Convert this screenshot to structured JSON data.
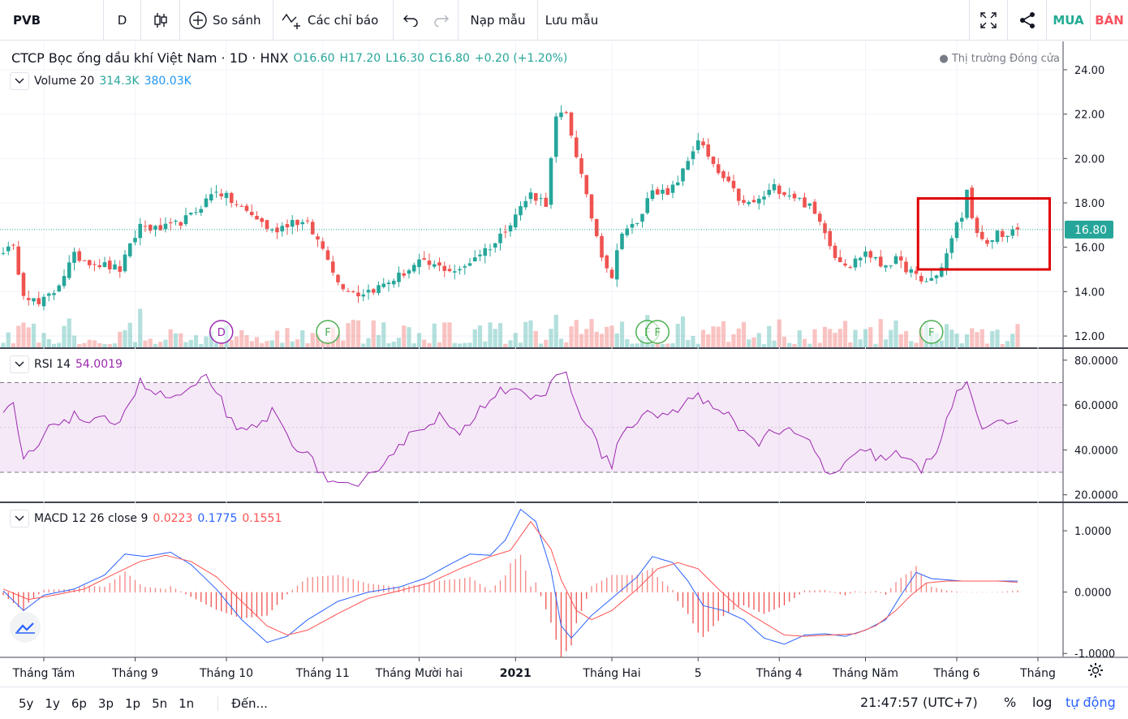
{
  "toolbar": {
    "symbol": "PVB",
    "interval": "D",
    "compare": "So sánh",
    "indicators": "Các chỉ báo",
    "load_template": "Nạp mẫu",
    "save_template": "Lưu mẫu",
    "buy": "MUA",
    "sell": "BÁN",
    "buy_color": "#22ab94",
    "sell_color": "#f7525f"
  },
  "main_legend": {
    "title": "CTCP Bọc ống dầu khí Việt Nam · 1D · HNX",
    "open": "O16.60",
    "high": "H17.20",
    "low": "L16.30",
    "close": "C16.80",
    "change": "+0.20 (+1.20%)",
    "status": "Thị trường Đóng cửa"
  },
  "volume_legend": {
    "name": "Volume 20",
    "v1": "314.3K",
    "v2": "380.03K"
  },
  "rsi_legend": {
    "name": "RSI 14",
    "value": "54.0019"
  },
  "macd_legend": {
    "name": "MACD 12 26 close 9",
    "hist": "0.0223",
    "macd": "0.1775",
    "signal": "0.1551"
  },
  "colors": {
    "up": "#26a69a",
    "down": "#ef5350",
    "rsi": "#9c27b0",
    "macd": "#2962ff",
    "signal": "#ff5252",
    "highlight": "#e00000"
  },
  "chart_data": {
    "type": "candlestick",
    "symbol": "PVB",
    "exchange": "HNX",
    "last_price": 16.8,
    "last_price_label": "16.80",
    "price_axis": {
      "ylim": [
        11.6,
        24.4
      ],
      "ticks": [
        "24.00",
        "22.00",
        "20.00",
        "18.00",
        "16.00",
        "14.00",
        "12.00"
      ]
    },
    "rsi_axis": {
      "ylim": [
        17,
        85
      ],
      "ticks": [
        "80.0000",
        "60.0000",
        "40.0000",
        "20.0000"
      ],
      "band": [
        30,
        70
      ]
    },
    "macd_axis": {
      "ylim": [
        -1.05,
        1.45
      ],
      "ticks": [
        "1.0000",
        "0.0000",
        "-1.0000"
      ]
    },
    "x_labels": [
      "Tháng Tám",
      "Tháng 9",
      "Tháng 10",
      "Tháng 11",
      "Tháng Mười hai",
      "2021",
      "Tháng Hai",
      "5",
      "Tháng 4",
      "Tháng Năm",
      "Tháng 6",
      "Tháng"
    ],
    "price_anchors": [
      [
        0,
        15.9
      ],
      [
        2,
        15.9
      ],
      [
        4,
        14.0
      ],
      [
        7,
        13.4
      ],
      [
        10,
        14.0
      ],
      [
        14,
        15.6
      ],
      [
        18,
        15.3
      ],
      [
        23,
        15.0
      ],
      [
        27,
        17.0
      ],
      [
        30,
        16.8
      ],
      [
        33,
        16.9
      ],
      [
        37,
        17.4
      ],
      [
        42,
        18.6
      ],
      [
        46,
        17.9
      ],
      [
        50,
        17.3
      ],
      [
        53,
        16.7
      ],
      [
        57,
        17.2
      ],
      [
        60,
        17.0
      ],
      [
        64,
        15.6
      ],
      [
        66,
        14.4
      ],
      [
        70,
        13.9
      ],
      [
        74,
        14.2
      ],
      [
        78,
        14.7
      ],
      [
        82,
        15.3
      ],
      [
        86,
        15.1
      ],
      [
        90,
        14.9
      ],
      [
        93,
        15.6
      ],
      [
        97,
        16.2
      ],
      [
        101,
        17.5
      ],
      [
        104,
        18.4
      ],
      [
        107,
        18.0
      ],
      [
        109,
        21.8
      ],
      [
        111,
        22.0
      ],
      [
        113,
        20.2
      ],
      [
        115,
        18.2
      ],
      [
        118,
        15.7
      ],
      [
        120,
        14.7
      ],
      [
        122,
        16.8
      ],
      [
        125,
        17.0
      ],
      [
        128,
        18.7
      ],
      [
        131,
        18.3
      ],
      [
        134,
        19.4
      ],
      [
        137,
        20.9
      ],
      [
        140,
        19.6
      ],
      [
        143,
        18.8
      ],
      [
        146,
        17.9
      ],
      [
        149,
        18.1
      ],
      [
        152,
        18.7
      ],
      [
        156,
        18.3
      ],
      [
        159,
        17.8
      ],
      [
        162,
        16.8
      ],
      [
        164,
        15.6
      ],
      [
        167,
        15.2
      ],
      [
        170,
        15.8
      ],
      [
        173,
        15.2
      ],
      [
        176,
        15.4
      ],
      [
        179,
        14.9
      ],
      [
        181,
        14.4
      ],
      [
        184,
        14.7
      ],
      [
        186,
        15.7
      ],
      [
        188,
        17.0
      ],
      [
        189,
        17.4
      ],
      [
        190,
        18.5
      ],
      [
        192,
        16.5
      ],
      [
        194,
        16.0
      ],
      [
        196,
        16.7
      ],
      [
        198,
        16.5
      ],
      [
        200,
        16.8
      ]
    ],
    "rsi_anchors": [
      [
        0,
        56
      ],
      [
        2,
        60
      ],
      [
        4,
        35
      ],
      [
        7,
        42
      ],
      [
        10,
        52
      ],
      [
        14,
        55
      ],
      [
        18,
        52
      ],
      [
        23,
        54
      ],
      [
        27,
        70
      ],
      [
        30,
        65
      ],
      [
        33,
        63
      ],
      [
        37,
        66
      ],
      [
        40,
        72
      ],
      [
        42,
        67
      ],
      [
        46,
        47
      ],
      [
        50,
        50
      ],
      [
        53,
        57
      ],
      [
        57,
        44
      ],
      [
        60,
        37
      ],
      [
        64,
        27
      ],
      [
        66,
        24
      ],
      [
        70,
        22
      ],
      [
        74,
        33
      ],
      [
        78,
        42
      ],
      [
        82,
        50
      ],
      [
        86,
        55
      ],
      [
        90,
        45
      ],
      [
        93,
        56
      ],
      [
        97,
        66
      ],
      [
        101,
        69
      ],
      [
        104,
        63
      ],
      [
        107,
        62
      ],
      [
        109,
        75
      ],
      [
        111,
        73
      ],
      [
        113,
        60
      ],
      [
        115,
        52
      ],
      [
        118,
        38
      ],
      [
        120,
        34
      ],
      [
        122,
        48
      ],
      [
        125,
        52
      ],
      [
        128,
        57
      ],
      [
        131,
        55
      ],
      [
        134,
        59
      ],
      [
        137,
        66
      ],
      [
        140,
        57
      ],
      [
        143,
        55
      ],
      [
        146,
        48
      ],
      [
        149,
        44
      ],
      [
        152,
        49
      ],
      [
        156,
        47
      ],
      [
        159,
        43
      ],
      [
        162,
        31
      ],
      [
        164,
        29
      ],
      [
        167,
        35
      ],
      [
        170,
        40
      ],
      [
        173,
        36
      ],
      [
        176,
        38
      ],
      [
        179,
        34
      ],
      [
        181,
        31
      ],
      [
        184,
        40
      ],
      [
        186,
        55
      ],
      [
        188,
        64
      ],
      [
        189,
        67
      ],
      [
        190,
        71
      ],
      [
        192,
        55
      ],
      [
        194,
        48
      ],
      [
        196,
        51
      ],
      [
        198,
        52
      ],
      [
        200,
        54
      ]
    ],
    "macd_anchors": [
      [
        0,
        0.02
      ],
      [
        4,
        -0.3
      ],
      [
        8,
        -0.05
      ],
      [
        14,
        0.05
      ],
      [
        20,
        0.28
      ],
      [
        24,
        0.62
      ],
      [
        28,
        0.58
      ],
      [
        33,
        0.65
      ],
      [
        37,
        0.45
      ],
      [
        42,
        0.05
      ],
      [
        47,
        -0.45
      ],
      [
        52,
        -0.82
      ],
      [
        56,
        -0.72
      ],
      [
        60,
        -0.45
      ],
      [
        66,
        -0.15
      ],
      [
        72,
        0.0
      ],
      [
        78,
        0.08
      ],
      [
        83,
        0.22
      ],
      [
        88,
        0.45
      ],
      [
        92,
        0.62
      ],
      [
        96,
        0.6
      ],
      [
        99,
        0.85
      ],
      [
        102,
        1.35
      ],
      [
        105,
        1.15
      ],
      [
        108,
        0.35
      ],
      [
        110,
        -0.55
      ],
      [
        112,
        -0.75
      ],
      [
        116,
        -0.38
      ],
      [
        120,
        -0.1
      ],
      [
        125,
        0.25
      ],
      [
        128,
        0.58
      ],
      [
        132,
        0.48
      ],
      [
        135,
        0.18
      ],
      [
        138,
        -0.22
      ],
      [
        142,
        -0.3
      ],
      [
        146,
        -0.45
      ],
      [
        150,
        -0.75
      ],
      [
        154,
        -0.85
      ],
      [
        158,
        -0.7
      ],
      [
        162,
        -0.68
      ],
      [
        166,
        -0.72
      ],
      [
        170,
        -0.62
      ],
      [
        174,
        -0.45
      ],
      [
        177,
        -0.05
      ],
      [
        180,
        0.32
      ],
      [
        183,
        0.22
      ],
      [
        186,
        0.2
      ],
      [
        189,
        0.18
      ],
      [
        192,
        0.18
      ],
      [
        196,
        0.18
      ],
      [
        200,
        0.18
      ]
    ],
    "signal_anchors": [
      [
        0,
        0.05
      ],
      [
        5,
        -0.12
      ],
      [
        10,
        -0.05
      ],
      [
        16,
        0.05
      ],
      [
        22,
        0.3
      ],
      [
        27,
        0.5
      ],
      [
        32,
        0.6
      ],
      [
        37,
        0.5
      ],
      [
        42,
        0.25
      ],
      [
        47,
        -0.15
      ],
      [
        52,
        -0.55
      ],
      [
        56,
        -0.7
      ],
      [
        60,
        -0.62
      ],
      [
        66,
        -0.35
      ],
      [
        72,
        -0.1
      ],
      [
        78,
        0.02
      ],
      [
        84,
        0.15
      ],
      [
        90,
        0.38
      ],
      [
        96,
        0.58
      ],
      [
        100,
        0.68
      ],
      [
        104,
        1.15
      ],
      [
        108,
        0.7
      ],
      [
        110,
        0.2
      ],
      [
        113,
        -0.3
      ],
      [
        116,
        -0.45
      ],
      [
        120,
        -0.3
      ],
      [
        125,
        0.05
      ],
      [
        129,
        0.38
      ],
      [
        133,
        0.48
      ],
      [
        137,
        0.38
      ],
      [
        141,
        0.05
      ],
      [
        145,
        -0.25
      ],
      [
        150,
        -0.5
      ],
      [
        154,
        -0.7
      ],
      [
        158,
        -0.72
      ],
      [
        163,
        -0.7
      ],
      [
        168,
        -0.68
      ],
      [
        172,
        -0.55
      ],
      [
        176,
        -0.3
      ],
      [
        179,
        -0.05
      ],
      [
        182,
        0.15
      ],
      [
        186,
        0.18
      ],
      [
        190,
        0.18
      ],
      [
        196,
        0.18
      ],
      [
        200,
        0.16
      ]
    ],
    "events": [
      {
        "label": "D",
        "color": "#9c27b0",
        "bar": 43
      },
      {
        "label": "F",
        "color": "#4caf50",
        "bar": 64
      },
      {
        "label": "F",
        "color": "#4caf50",
        "bar": 127
      },
      {
        "label": "F",
        "color": "#4caf50",
        "bar": 129
      },
      {
        "label": "F",
        "color": "#4caf50",
        "bar": 183
      }
    ]
  },
  "range_buttons": [
    "5y",
    "1y",
    "6p",
    "3p",
    "1p",
    "5n",
    "1n"
  ],
  "goto_label": "Đến...",
  "clock": "21:47:57 (UTC+7)",
  "scale_percent": "%",
  "scale_log": "log",
  "scale_auto": "tự động"
}
